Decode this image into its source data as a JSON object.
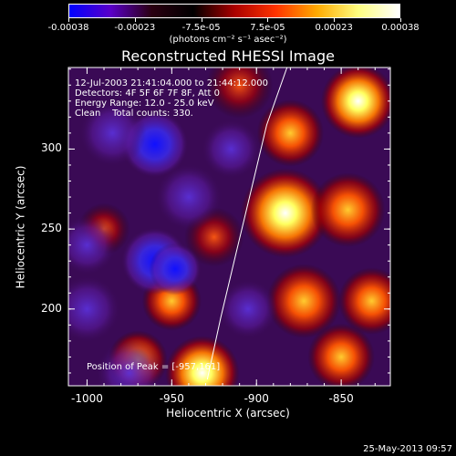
{
  "colorbar": {
    "ticks": [
      "-0.00038",
      "-0.00023",
      "-7.5e-05",
      "7.5e-05",
      "0.00023",
      "0.00038"
    ],
    "units_text": "(photons cm⁻² s⁻¹ asec⁻²)",
    "colors": [
      "#0000ff",
      "#5a00c8",
      "#2a0010",
      "#000000",
      "#aa0000",
      "#ff3300",
      "#ffaa00",
      "#ffff80",
      "#ffffff"
    ]
  },
  "chart_data": {
    "type": "heatmap",
    "title": "Reconstructed RHESSI Image",
    "xlabel": "Heliocentric X (arcsec)",
    "ylabel": "Heliocentric Y (arcsec)",
    "xlim": [
      -1011,
      -821
    ],
    "ylim": [
      152,
      351
    ],
    "x_ticks": [
      -1000,
      -950,
      -900,
      -850
    ],
    "y_ticks": [
      200,
      250,
      300
    ],
    "annotation_lines": [
      "12-Jul-2003 21:41:04.000 to 21:44:12.000",
      "Detectors: 4F 5F 6F 7F 8F, Att 0",
      "Energy Range: 12.0 - 25.0 keV",
      "Clean    Total counts: 330."
    ],
    "peak_text": "Position of Peak = [-957,161]",
    "limb_curve": [
      [
        -929,
        156
      ],
      [
        -921,
        195
      ],
      [
        -912,
        235
      ],
      [
        -903,
        275
      ],
      [
        -894,
        315
      ],
      [
        -882,
        351
      ]
    ],
    "sources": [
      {
        "x": -932,
        "y": 160,
        "value": 1.0,
        "r": 10
      },
      {
        "x": -950,
        "y": 205,
        "value": 0.85,
        "r": 8
      },
      {
        "x": -883,
        "y": 260,
        "value": 0.9,
        "r": 12
      },
      {
        "x": -840,
        "y": 330,
        "value": 0.95,
        "r": 10
      },
      {
        "x": -880,
        "y": 310,
        "value": 0.8,
        "r": 9
      },
      {
        "x": -846,
        "y": 262,
        "value": 0.85,
        "r": 10
      },
      {
        "x": -872,
        "y": 205,
        "value": 0.75,
        "r": 10
      },
      {
        "x": -832,
        "y": 205,
        "value": 0.7,
        "r": 9
      },
      {
        "x": -970,
        "y": 168,
        "value": 0.7,
        "r": 8
      },
      {
        "x": -990,
        "y": 250,
        "value": 0.5,
        "r": 7
      },
      {
        "x": -910,
        "y": 340,
        "value": 0.6,
        "r": 9
      },
      {
        "x": -850,
        "y": 170,
        "value": 0.65,
        "r": 9
      },
      {
        "x": -925,
        "y": 245,
        "value": 0.55,
        "r": 8
      },
      {
        "x": -960,
        "y": 303,
        "value": -0.9,
        "r": 9
      },
      {
        "x": -1000,
        "y": 240,
        "value": -0.7,
        "r": 8
      },
      {
        "x": -960,
        "y": 230,
        "value": -0.8,
        "r": 9
      },
      {
        "x": -948,
        "y": 225,
        "value": -1.0,
        "r": 7
      },
      {
        "x": -905,
        "y": 200,
        "value": -0.7,
        "r": 8
      },
      {
        "x": -985,
        "y": 310,
        "value": -0.6,
        "r": 9
      },
      {
        "x": -1000,
        "y": 200,
        "value": -0.6,
        "r": 9
      },
      {
        "x": -940,
        "y": 270,
        "value": -0.5,
        "r": 9
      },
      {
        "x": -915,
        "y": 300,
        "value": -0.45,
        "r": 8
      },
      {
        "x": -975,
        "y": 160,
        "value": -0.5,
        "r": 9
      }
    ]
  },
  "footer": {
    "timestamp": "25-May-2013 09:57"
  }
}
